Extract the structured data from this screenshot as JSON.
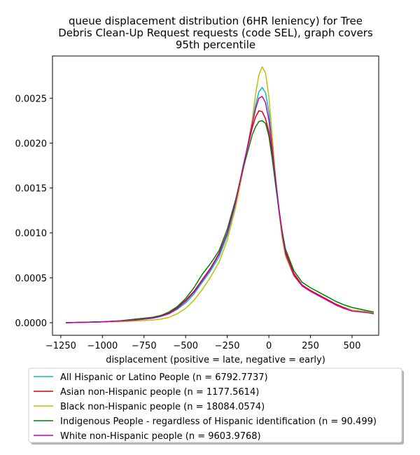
{
  "chart_data": {
    "type": "line",
    "title_lines": [
      "queue displacement distribution (6HR leniency) for Tree",
      "Debris Clean-Up Request  requests (code SEL), graph covers",
      "95th percentile"
    ],
    "xlabel": "displacement (positive = late, negative = early)",
    "ylabel": "",
    "xlim": [
      -1300,
      660
    ],
    "ylim": [
      -0.00014,
      0.00297
    ],
    "xticks": [
      -1250,
      -1000,
      -750,
      -500,
      -250,
      0,
      250,
      500
    ],
    "xtick_labels": [
      "−1250",
      "−1000",
      "−750",
      "−500",
      "−250",
      "0",
      "250",
      "500"
    ],
    "yticks": [
      0.0,
      0.0005,
      0.001,
      0.0015,
      0.002,
      0.0025
    ],
    "ytick_labels": [
      "0.0000",
      "0.0005",
      "0.0010",
      "0.0015",
      "0.0020",
      "0.0025"
    ],
    "grid": false,
    "legend_position": "below plot",
    "x": [
      -1220,
      -1000,
      -900,
      -800,
      -700,
      -650,
      -600,
      -550,
      -500,
      -450,
      -400,
      -350,
      -300,
      -250,
      -200,
      -150,
      -100,
      -80,
      -60,
      -40,
      -20,
      0,
      20,
      40,
      60,
      80,
      100,
      150,
      200,
      250,
      300,
      350,
      400,
      450,
      500,
      550,
      600,
      630
    ],
    "series": [
      {
        "name": "All Hispanic or Latino People (n = 6792.7737)",
        "color": "#00bfbf",
        "values": [
          0.0,
          1e-05,
          2e-05,
          3e-05,
          5e-05,
          7e-05,
          0.0001,
          0.00015,
          0.00022,
          0.00032,
          0.00045,
          0.00058,
          0.00073,
          0.00097,
          0.00132,
          0.00176,
          0.00222,
          0.00242,
          0.00257,
          0.00262,
          0.00256,
          0.00235,
          0.002,
          0.00163,
          0.00128,
          0.00099,
          0.00077,
          0.00053,
          0.00041,
          0.00035,
          0.0003,
          0.00025,
          0.0002,
          0.00016,
          0.00014,
          0.00013,
          0.00012,
          0.00011
        ]
      },
      {
        "name": "Asian non-Hispanic people (n = 1177.5614)",
        "color": "#e60000",
        "values": [
          0.0,
          1e-05,
          2e-05,
          4e-05,
          6e-05,
          8e-05,
          0.00011,
          0.00017,
          0.00025,
          0.00035,
          0.00048,
          0.00061,
          0.00077,
          0.001,
          0.00135,
          0.00178,
          0.00217,
          0.00229,
          0.00236,
          0.00235,
          0.00227,
          0.00213,
          0.00188,
          0.00158,
          0.00128,
          0.00101,
          0.0008,
          0.00055,
          0.00042,
          0.00036,
          0.00031,
          0.00026,
          0.00021,
          0.00017,
          0.00014,
          0.00013,
          0.00012,
          0.0001
        ]
      },
      {
        "name": "Black non-Hispanic people (n = 18084.0574)",
        "color": "#bfbf00",
        "values": [
          0.0,
          1e-05,
          1e-05,
          2e-05,
          3e-05,
          4e-05,
          6e-05,
          0.0001,
          0.00016,
          0.00025,
          0.00037,
          0.00051,
          0.00067,
          0.00092,
          0.00128,
          0.00174,
          0.00226,
          0.00254,
          0.00276,
          0.00285,
          0.00278,
          0.00252,
          0.00208,
          0.00163,
          0.00124,
          0.00094,
          0.00074,
          0.00052,
          0.00041,
          0.00035,
          0.0003,
          0.00025,
          0.0002,
          0.00016,
          0.00014,
          0.00013,
          0.00012,
          0.00011
        ]
      },
      {
        "name": "Indigenous People - regardless of Hispanic identification (n = 90.499)",
        "color": "#008000",
        "values": [
          0.0,
          1e-05,
          2e-05,
          4e-05,
          6e-05,
          8e-05,
          0.00012,
          0.00018,
          0.00027,
          0.00039,
          0.00054,
          0.00066,
          0.0008,
          0.00104,
          0.00137,
          0.00175,
          0.00209,
          0.00218,
          0.00224,
          0.00225,
          0.00222,
          0.00208,
          0.00183,
          0.00154,
          0.00126,
          0.00102,
          0.00082,
          0.00058,
          0.00045,
          0.00039,
          0.00034,
          0.00029,
          0.00024,
          0.0002,
          0.00017,
          0.00015,
          0.00013,
          0.00012
        ]
      },
      {
        "name": "White non-Hispanic people (n = 9603.9768)",
        "color": "#bf00bf",
        "values": [
          0.0,
          1e-05,
          2e-05,
          3e-05,
          5e-05,
          7e-05,
          0.0001,
          0.00016,
          0.00024,
          0.00034,
          0.00047,
          0.0006,
          0.00076,
          0.001,
          0.00134,
          0.00177,
          0.00221,
          0.00238,
          0.0025,
          0.00252,
          0.00245,
          0.00226,
          0.00195,
          0.0016,
          0.00127,
          0.00099,
          0.00077,
          0.00053,
          0.00041,
          0.00035,
          0.0003,
          0.00025,
          0.0002,
          0.00016,
          0.00013,
          0.00012,
          0.00011,
          0.0001
        ]
      }
    ]
  }
}
